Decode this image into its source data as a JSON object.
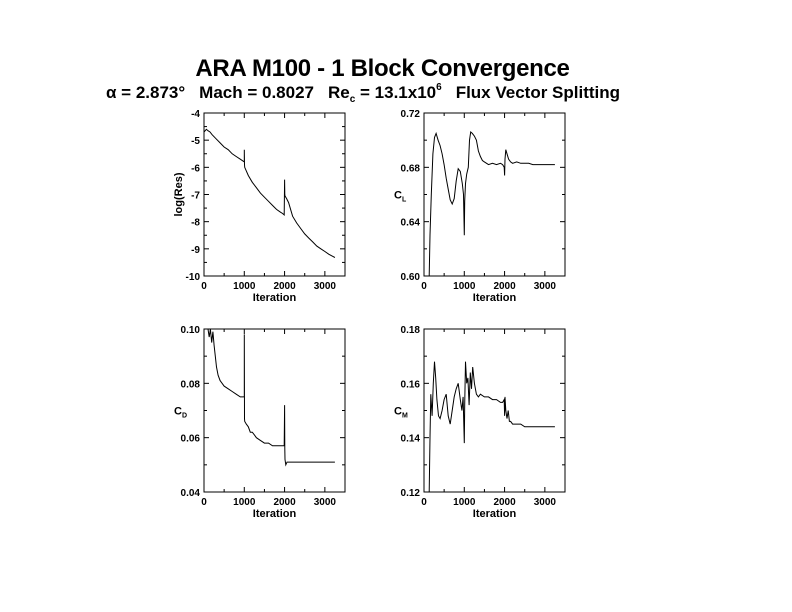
{
  "title": "ARA M100 - 1 Block Convergence",
  "subtitle": {
    "alpha": "α = 2.873°",
    "mach": "Mach = 0.8027",
    "re_main": "Re",
    "re_sub": "c",
    "re_value": " = 13.1x10",
    "re_exp": "6",
    "scheme": "Flux Vector Splitting"
  },
  "chart_data": [
    {
      "type": "line",
      "xlabel": "Iteration",
      "ylabel": "log(Res)",
      "ylabel_sub": "",
      "xlim": [
        0,
        3500
      ],
      "ylim": [
        -10,
        -4
      ],
      "xticks": [
        0,
        1000,
        2000,
        3000
      ],
      "xtick_labels": [
        "0",
        "1000",
        "2000",
        "3000"
      ],
      "yticks": [
        -10,
        -9,
        -8,
        -7,
        -6,
        -5,
        -4
      ],
      "ytick_labels": [
        "-10",
        "-9",
        "-8",
        "-7",
        "-6",
        "-5",
        "-4"
      ],
      "grid": false,
      "series": [
        {
          "x": [
            0,
            30,
            60,
            100,
            150,
            200,
            300,
            400,
            500,
            600,
            700,
            800,
            900,
            1000,
            1000,
            1005,
            1010,
            1100,
            1200,
            1300,
            1400,
            1500,
            1600,
            1700,
            1800,
            1900,
            1950,
            1990,
            2000,
            2005,
            2010,
            2050,
            2100,
            2200,
            2300,
            2400,
            2500,
            2600,
            2700,
            2800,
            2900,
            3000,
            3100,
            3200,
            3250
          ],
          "y": [
            -4.7,
            -4.65,
            -4.6,
            -4.65,
            -4.7,
            -4.8,
            -4.95,
            -5.1,
            -5.25,
            -5.35,
            -5.5,
            -5.6,
            -5.7,
            -5.8,
            -5.35,
            -5.9,
            -6.0,
            -6.3,
            -6.55,
            -6.75,
            -6.95,
            -7.1,
            -7.25,
            -7.4,
            -7.55,
            -7.65,
            -7.7,
            -7.75,
            -6.45,
            -7.0,
            -7.05,
            -7.15,
            -7.3,
            -7.8,
            -8.05,
            -8.25,
            -8.45,
            -8.6,
            -8.75,
            -8.9,
            -9.0,
            -9.1,
            -9.2,
            -9.28,
            -9.32
          ]
        }
      ]
    },
    {
      "type": "line",
      "xlabel": "Iteration",
      "ylabel": "C",
      "ylabel_sub": "L",
      "xlim": [
        0,
        3500
      ],
      "ylim": [
        0.6,
        0.72
      ],
      "xticks": [
        0,
        1000,
        2000,
        3000
      ],
      "xtick_labels": [
        "0",
        "1000",
        "2000",
        "3000"
      ],
      "yticks": [
        0.6,
        0.64,
        0.68,
        0.72
      ],
      "ytick_labels": [
        "0.60",
        "0.64",
        "0.68",
        "0.72"
      ],
      "grid": false,
      "series": [
        {
          "x": [
            130,
            150,
            180,
            220,
            260,
            300,
            350,
            400,
            450,
            500,
            550,
            600,
            650,
            700,
            750,
            800,
            850,
            900,
            950,
            980,
            1000,
            1010,
            1030,
            1060,
            1100,
            1130,
            1160,
            1200,
            1250,
            1300,
            1350,
            1400,
            1450,
            1500,
            1600,
            1700,
            1800,
            1900,
            1950,
            1990,
            2000,
            2010,
            2030,
            2060,
            2100,
            2150,
            2200,
            2300,
            2400,
            2500,
            2600,
            2700,
            2800,
            2900,
            3000,
            3100,
            3250
          ],
          "y": [
            0.6,
            0.63,
            0.66,
            0.69,
            0.702,
            0.705,
            0.7,
            0.696,
            0.69,
            0.682,
            0.672,
            0.664,
            0.656,
            0.653,
            0.657,
            0.67,
            0.679,
            0.677,
            0.668,
            0.66,
            0.63,
            0.655,
            0.668,
            0.675,
            0.68,
            0.7,
            0.706,
            0.705,
            0.703,
            0.7,
            0.692,
            0.688,
            0.685,
            0.684,
            0.682,
            0.683,
            0.682,
            0.683,
            0.682,
            0.68,
            0.674,
            0.686,
            0.693,
            0.69,
            0.686,
            0.684,
            0.683,
            0.684,
            0.683,
            0.683,
            0.683,
            0.682,
            0.682,
            0.682,
            0.682,
            0.682,
            0.682
          ]
        }
      ]
    },
    {
      "type": "line",
      "xlabel": "Iteration",
      "ylabel": "C",
      "ylabel_sub": "D",
      "xlim": [
        0,
        3500
      ],
      "ylim": [
        0.04,
        0.1
      ],
      "xticks": [
        0,
        1000,
        2000,
        3000
      ],
      "xtick_labels": [
        "0",
        "1000",
        "2000",
        "3000"
      ],
      "yticks": [
        0.04,
        0.06,
        0.08,
        0.1
      ],
      "ytick_labels": [
        "0.04",
        "0.06",
        "0.08",
        "0.10"
      ],
      "grid": false,
      "series": [
        {
          "x": [
            100,
            130,
            160,
            190,
            220,
            250,
            280,
            310,
            350,
            400,
            450,
            500,
            600,
            700,
            800,
            900,
            1000,
            1000,
            1005,
            1010,
            1050,
            1100,
            1150,
            1200,
            1250,
            1300,
            1400,
            1500,
            1600,
            1700,
            1800,
            1900,
            1990,
            2000,
            2005,
            2010,
            2030,
            2060,
            2100,
            2200,
            2300,
            2500,
            2700,
            3000,
            3250
          ],
          "y": [
            0.1,
            0.097,
            0.1,
            0.095,
            0.099,
            0.094,
            0.09,
            0.086,
            0.083,
            0.081,
            0.08,
            0.079,
            0.078,
            0.077,
            0.076,
            0.075,
            0.075,
            0.098,
            0.067,
            0.066,
            0.065,
            0.064,
            0.062,
            0.062,
            0.061,
            0.06,
            0.059,
            0.058,
            0.058,
            0.057,
            0.057,
            0.057,
            0.057,
            0.072,
            0.056,
            0.052,
            0.05,
            0.051,
            0.051,
            0.051,
            0.051,
            0.051,
            0.051,
            0.051,
            0.051
          ]
        }
      ]
    },
    {
      "type": "line",
      "xlabel": "Iteration",
      "ylabel": "C",
      "ylabel_sub": "M",
      "xlim": [
        0,
        3500
      ],
      "ylim": [
        0.12,
        0.18
      ],
      "xticks": [
        0,
        1000,
        2000,
        3000
      ],
      "xtick_labels": [
        "0",
        "1000",
        "2000",
        "3000"
      ],
      "yticks": [
        0.12,
        0.14,
        0.16,
        0.18
      ],
      "ytick_labels": [
        "0.12",
        "0.14",
        "0.16",
        "0.18"
      ],
      "grid": false,
      "series": [
        {
          "x": [
            130,
            150,
            170,
            200,
            230,
            260,
            290,
            320,
            360,
            400,
            450,
            500,
            550,
            600,
            650,
            700,
            750,
            800,
            850,
            900,
            940,
            970,
            1000,
            1010,
            1030,
            1060,
            1090,
            1120,
            1150,
            1180,
            1210,
            1250,
            1300,
            1350,
            1400,
            1500,
            1600,
            1700,
            1800,
            1900,
            1950,
            1990,
            2000,
            2010,
            2030,
            2060,
            2090,
            2120,
            2150,
            2200,
            2300,
            2400,
            2500,
            2700,
            3000,
            3250
          ],
          "y": [
            0.12,
            0.14,
            0.156,
            0.148,
            0.16,
            0.168,
            0.162,
            0.154,
            0.148,
            0.147,
            0.15,
            0.154,
            0.156,
            0.148,
            0.145,
            0.15,
            0.155,
            0.158,
            0.16,
            0.154,
            0.15,
            0.155,
            0.138,
            0.152,
            0.168,
            0.16,
            0.162,
            0.152,
            0.164,
            0.158,
            0.166,
            0.16,
            0.156,
            0.155,
            0.156,
            0.155,
            0.155,
            0.154,
            0.154,
            0.153,
            0.153,
            0.154,
            0.148,
            0.155,
            0.15,
            0.147,
            0.15,
            0.146,
            0.146,
            0.145,
            0.145,
            0.145,
            0.144,
            0.144,
            0.144,
            0.144
          ]
        }
      ]
    }
  ]
}
